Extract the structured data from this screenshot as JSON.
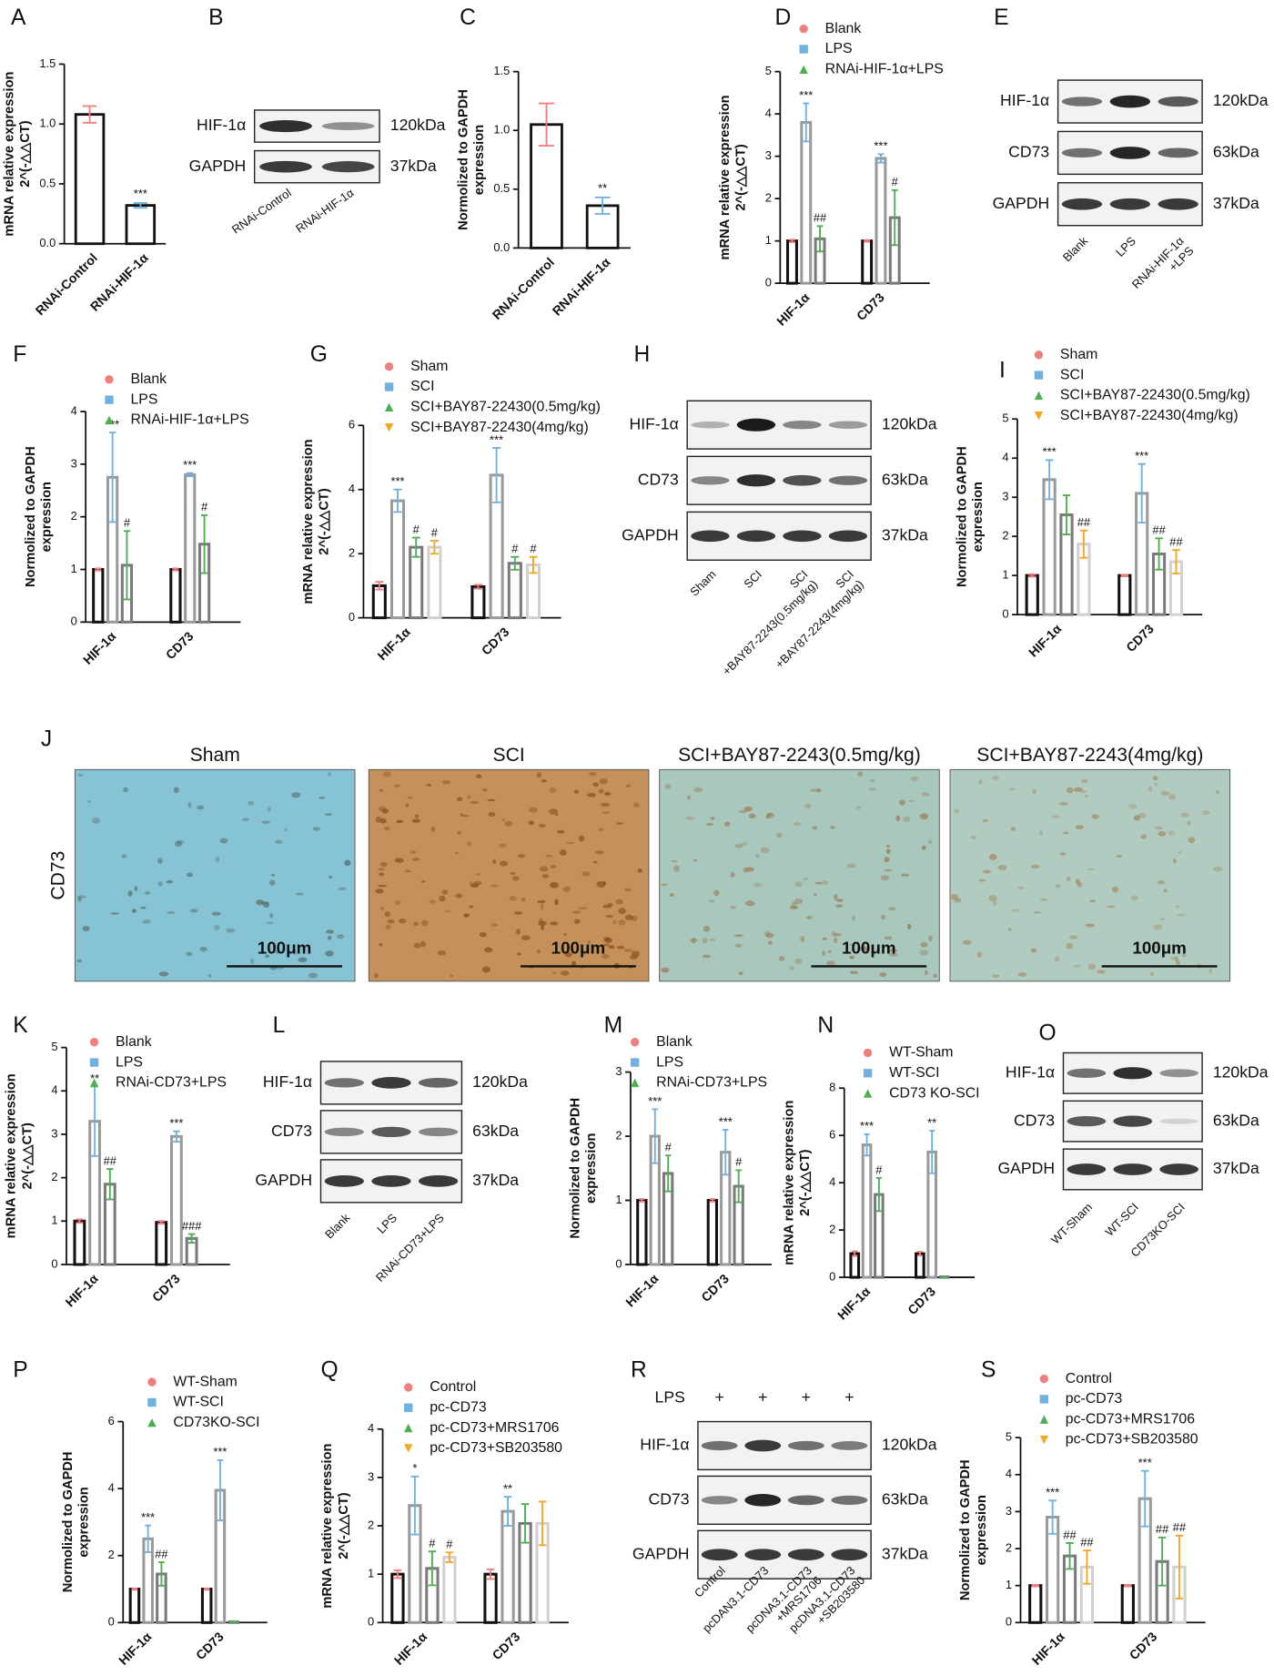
{
  "chart_data": [
    {
      "panel": "A",
      "type": "bar",
      "ylabel": [
        "mRNA relative expression",
        "2^(-△△CT)"
      ],
      "categories": [
        "RNAi-Control",
        "RNAi-HIF-1α"
      ],
      "values": [
        1.08,
        0.32
      ],
      "errors": [
        0.07,
        0.02
      ],
      "annotations": [
        null,
        "***"
      ],
      "colors": [
        "#f08080",
        "#6fb1e0"
      ],
      "edgecolor": "#111",
      "ylim": [
        0,
        1.5
      ],
      "yticks": [
        {
          "value": 0,
          "label": "0.0"
        },
        0.5,
        {
          "value": 1,
          "label": "1.0"
        },
        1.5
      ]
    },
    {
      "panel": "C",
      "type": "bar",
      "ylabel": [
        "Normolized to GAPDH",
        "expression"
      ],
      "categories": [
        "RNAi-Control",
        "RNAi-HIF-1α"
      ],
      "values": [
        1.05,
        0.36
      ],
      "errors": [
        0.18,
        0.07
      ],
      "annotations": [
        null,
        "**"
      ],
      "colors": [
        "#f08080",
        "#6fb1e0"
      ],
      "edgecolor": "#111",
      "ylim": [
        0,
        1.5
      ],
      "yticks": [
        {
          "value": 0,
          "label": "0.0"
        },
        0.5,
        {
          "value": 1,
          "label": "1.0"
        },
        1.5
      ]
    },
    {
      "panel": "D",
      "type": "bar",
      "ylabel": [
        "mRNA relative expression",
        "2^(-△△CT)"
      ],
      "categories": [
        "HIF-1α",
        "CD73"
      ],
      "ylim": [
        0,
        5
      ],
      "yticks": [
        0,
        1,
        2,
        3,
        4,
        5
      ],
      "series": [
        {
          "name": "Blank",
          "color": "#f08080",
          "edgecolor": "#111",
          "marker": "circle",
          "values": [
            1,
            1
          ],
          "errors": [
            0.03,
            0.02
          ]
        },
        {
          "name": "LPS",
          "color": "#6fb1e0",
          "edgecolor": "#9a9a9a",
          "marker": "square",
          "values": [
            3.8,
            2.95
          ],
          "errors": [
            0.45,
            0.1
          ],
          "annotations": [
            "***",
            "***"
          ]
        },
        {
          "name": "RNAi-HIF-1α+LPS",
          "color": "#4caf50",
          "edgecolor": "#7a7a7a",
          "marker": "triangle",
          "values": [
            1.05,
            1.55
          ],
          "errors": [
            0.3,
            0.65
          ],
          "annotations": [
            "##",
            "#"
          ]
        }
      ]
    },
    {
      "panel": "F",
      "type": "bar",
      "ylabel": [
        "Normolized to GAPDH",
        "expression"
      ],
      "categories": [
        "HIF-1α",
        "CD73"
      ],
      "ylim": [
        0,
        4
      ],
      "yticks": [
        0,
        1,
        2,
        3,
        4
      ],
      "series": [
        {
          "name": "Blank",
          "color": "#f08080",
          "edgecolor": "#111",
          "marker": "circle",
          "values": [
            1,
            1
          ],
          "errors": [
            0.02,
            0.02
          ]
        },
        {
          "name": "LPS",
          "color": "#6fb1e0",
          "edgecolor": "#9a9a9a",
          "marker": "square",
          "values": [
            2.75,
            2.8
          ],
          "errors": [
            0.85,
            0.03
          ],
          "annotations": [
            "***",
            "***"
          ]
        },
        {
          "name": "RNAi-HIF-1α+LPS",
          "color": "#4caf50",
          "edgecolor": "#7a7a7a",
          "marker": "triangle",
          "values": [
            1.08,
            1.48
          ],
          "errors": [
            0.65,
            0.55
          ],
          "annotations": [
            "#",
            "#"
          ]
        }
      ]
    },
    {
      "panel": "G",
      "type": "bar",
      "ylabel": [
        "mRNA relative expression",
        "2^(-△△CT)"
      ],
      "categories": [
        "HIF-1α",
        "CD73"
      ],
      "ylim": [
        0,
        6
      ],
      "yticks": [
        0,
        2,
        4,
        6
      ],
      "series": [
        {
          "name": "Sham",
          "color": "#f08080",
          "edgecolor": "#111",
          "marker": "circle",
          "values": [
            1,
            0.97
          ],
          "errors": [
            0.12,
            0.06
          ]
        },
        {
          "name": "SCI",
          "color": "#6fb1e0",
          "edgecolor": "#9a9a9a",
          "marker": "square",
          "values": [
            3.65,
            4.45
          ],
          "errors": [
            0.35,
            0.85
          ],
          "annotations": [
            "***",
            "***"
          ]
        },
        {
          "name": "SCI+BAY87-22430(0.5mg/kg)",
          "color": "#4caf50",
          "edgecolor": "#7a7a7a",
          "marker": "triangle",
          "values": [
            2.2,
            1.7
          ],
          "errors": [
            0.3,
            0.2
          ],
          "annotations": [
            "#",
            "#"
          ]
        },
        {
          "name": "SCI+BAY87-22430(4mg/kg)",
          "color": "#f5a623",
          "edgecolor": "#d0d0d0",
          "marker": "triangle-down",
          "values": [
            2.2,
            1.65
          ],
          "errors": [
            0.2,
            0.25
          ],
          "annotations": [
            "#",
            "#"
          ]
        }
      ]
    },
    {
      "panel": "I",
      "type": "bar",
      "ylabel": [
        "Normolized to GAPDH",
        "expression"
      ],
      "categories": [
        "HIF-1α",
        "CD73"
      ],
      "ylim": [
        0,
        5
      ],
      "yticks": [
        0,
        1,
        2,
        3,
        4,
        5
      ],
      "series": [
        {
          "name": "Sham",
          "color": "#f08080",
          "edgecolor": "#111",
          "marker": "circle",
          "values": [
            1,
            1
          ],
          "errors": [
            0.03,
            0.02
          ]
        },
        {
          "name": "SCI",
          "color": "#6fb1e0",
          "edgecolor": "#9a9a9a",
          "marker": "square",
          "values": [
            3.45,
            3.1
          ],
          "errors": [
            0.5,
            0.75
          ],
          "annotations": [
            "***",
            "***"
          ]
        },
        {
          "name": "SCI+BAY87-22430(0.5mg/kg)",
          "color": "#4caf50",
          "edgecolor": "#7a7a7a",
          "marker": "triangle",
          "values": [
            2.55,
            1.55
          ],
          "errors": [
            0.5,
            0.4
          ],
          "annotations": [
            null,
            "##"
          ]
        },
        {
          "name": "SCI+BAY87-22430(4mg/kg)",
          "color": "#f5a623",
          "edgecolor": "#d0d0d0",
          "marker": "triangle-down",
          "values": [
            1.8,
            1.35
          ],
          "errors": [
            0.35,
            0.3
          ],
          "annotations": [
            "##",
            "##"
          ]
        }
      ]
    },
    {
      "panel": "K",
      "type": "bar",
      "ylabel": [
        "mRNA relative expression",
        "2^(-△△CT)"
      ],
      "categories": [
        "HIF-1α",
        "CD73"
      ],
      "ylim": [
        0,
        5
      ],
      "yticks": [
        0,
        1,
        2,
        3,
        4,
        5
      ],
      "series": [
        {
          "name": "Blank",
          "color": "#f08080",
          "edgecolor": "#111",
          "marker": "circle",
          "values": [
            1,
            0.97
          ],
          "errors": [
            0.04,
            0.03
          ]
        },
        {
          "name": "LPS",
          "color": "#6fb1e0",
          "edgecolor": "#9a9a9a",
          "marker": "square",
          "values": [
            3.3,
            2.95
          ],
          "errors": [
            0.8,
            0.12
          ],
          "annotations": [
            "**",
            "***"
          ]
        },
        {
          "name": "RNAi-CD73+LPS",
          "color": "#4caf50",
          "edgecolor": "#7a7a7a",
          "marker": "triangle",
          "values": [
            1.85,
            0.6
          ],
          "errors": [
            0.35,
            0.1
          ],
          "annotations": [
            "##",
            "###"
          ]
        }
      ]
    },
    {
      "panel": "M",
      "type": "bar",
      "ylabel": [
        "Normolized to GAPDH",
        "expression"
      ],
      "categories": [
        "HIF-1α",
        "CD73"
      ],
      "ylim": [
        0,
        3
      ],
      "yticks": [
        0,
        1,
        2,
        3
      ],
      "series": [
        {
          "name": "Blank",
          "color": "#f08080",
          "edgecolor": "#111",
          "marker": "circle",
          "values": [
            1,
            1
          ],
          "errors": [
            0.02,
            0.02
          ]
        },
        {
          "name": "LPS",
          "color": "#6fb1e0",
          "edgecolor": "#9a9a9a",
          "marker": "square",
          "values": [
            2.0,
            1.75
          ],
          "errors": [
            0.42,
            0.35
          ],
          "annotations": [
            "***",
            "***"
          ]
        },
        {
          "name": "RNAi-CD73+LPS",
          "color": "#4caf50",
          "edgecolor": "#7a7a7a",
          "marker": "triangle",
          "values": [
            1.42,
            1.22
          ],
          "errors": [
            0.28,
            0.25
          ],
          "annotations": [
            "#",
            "#"
          ]
        }
      ]
    },
    {
      "panel": "N",
      "type": "bar",
      "ylabel": [
        "mRNA relative expression",
        "2^(-△△CT)"
      ],
      "categories": [
        "HIF-1α",
        "CD73"
      ],
      "ylim": [
        0,
        8
      ],
      "yticks": [
        0,
        2,
        4,
        6,
        8
      ],
      "series": [
        {
          "name": "WT-Sham",
          "color": "#f08080",
          "edgecolor": "#111",
          "marker": "circle",
          "values": [
            1,
            1
          ],
          "errors": [
            0.1,
            0.08
          ]
        },
        {
          "name": "WT-SCI",
          "color": "#6fb1e0",
          "edgecolor": "#9a9a9a",
          "marker": "square",
          "values": [
            5.6,
            5.3
          ],
          "errors": [
            0.45,
            0.9
          ],
          "annotations": [
            "***",
            "**"
          ]
        },
        {
          "name": "CD73 KO-SCI",
          "color": "#4caf50",
          "edgecolor": "#7a7a7a",
          "marker": "triangle",
          "values": [
            3.5,
            0.02
          ],
          "errors": [
            0.7,
            0.02
          ],
          "annotations": [
            "#",
            null
          ]
        }
      ]
    },
    {
      "panel": "P",
      "type": "bar",
      "ylabel": [
        "Normolized to GAPDH",
        "expression"
      ],
      "categories": [
        "HIF-1α",
        "CD73"
      ],
      "ylim": [
        0,
        6
      ],
      "yticks": [
        0,
        2,
        4,
        6
      ],
      "series": [
        {
          "name": "WT-Sham",
          "color": "#f08080",
          "edgecolor": "#111",
          "marker": "circle",
          "values": [
            1,
            1
          ],
          "errors": [
            0.02,
            0.02
          ]
        },
        {
          "name": "WT-SCI",
          "color": "#6fb1e0",
          "edgecolor": "#9a9a9a",
          "marker": "square",
          "values": [
            2.5,
            3.95
          ],
          "errors": [
            0.4,
            0.9
          ],
          "annotations": [
            "***",
            "***"
          ]
        },
        {
          "name": "CD73KO-SCI",
          "color": "#4caf50",
          "edgecolor": "#7a7a7a",
          "marker": "triangle",
          "values": [
            1.45,
            0.02
          ],
          "errors": [
            0.35,
            0.02
          ],
          "annotations": [
            "##",
            null
          ]
        }
      ]
    },
    {
      "panel": "Q",
      "type": "bar",
      "ylabel": [
        "mRNA relative expression",
        "2^(-△△CT)"
      ],
      "categories": [
        "HIF-1α",
        "CD73"
      ],
      "ylim": [
        0,
        4
      ],
      "yticks": [
        0,
        1,
        2,
        3,
        4
      ],
      "series": [
        {
          "name": "Control",
          "color": "#f08080",
          "edgecolor": "#111",
          "marker": "circle",
          "values": [
            1,
            1
          ],
          "errors": [
            0.08,
            0.1
          ]
        },
        {
          "name": "pc-CD73",
          "color": "#6fb1e0",
          "edgecolor": "#9a9a9a",
          "marker": "square",
          "values": [
            2.42,
            2.3
          ],
          "errors": [
            0.6,
            0.3
          ],
          "annotations": [
            "*",
            "**"
          ]
        },
        {
          "name": "pc-CD73+MRS1706",
          "color": "#4caf50",
          "edgecolor": "#7a7a7a",
          "marker": "triangle",
          "values": [
            1.12,
            2.05
          ],
          "errors": [
            0.35,
            0.4
          ],
          "annotations": [
            "#",
            null
          ]
        },
        {
          "name": "pc-CD73+SB203580",
          "color": "#f5a623",
          "edgecolor": "#d0d0d0",
          "marker": "triangle-down",
          "values": [
            1.35,
            2.05
          ],
          "errors": [
            0.1,
            0.45
          ],
          "annotations": [
            "#",
            null
          ]
        }
      ]
    },
    {
      "panel": "S",
      "type": "bar",
      "ylabel": [
        "Normolized to GAPDH",
        "expression"
      ],
      "categories": [
        "HIF-1α",
        "CD73"
      ],
      "ylim": [
        0,
        5
      ],
      "yticks": [
        0,
        1,
        2,
        3,
        4,
        5
      ],
      "series": [
        {
          "name": "Control",
          "color": "#f08080",
          "edgecolor": "#111",
          "marker": "circle",
          "values": [
            1,
            1
          ],
          "errors": [
            0.02,
            0.02
          ]
        },
        {
          "name": "pc-CD73",
          "color": "#6fb1e0",
          "edgecolor": "#9a9a9a",
          "marker": "square",
          "values": [
            2.85,
            3.35
          ],
          "errors": [
            0.45,
            0.75
          ],
          "annotations": [
            "***",
            "***"
          ]
        },
        {
          "name": "pc-CD73+MRS1706",
          "color": "#4caf50",
          "edgecolor": "#7a7a7a",
          "marker": "triangle",
          "values": [
            1.8,
            1.65
          ],
          "errors": [
            0.35,
            0.65
          ],
          "annotations": [
            "##",
            "##"
          ]
        },
        {
          "name": "pc-CD73+SB203580",
          "color": "#f5a623",
          "edgecolor": "#d0d0d0",
          "marker": "triangle-down",
          "values": [
            1.5,
            1.5
          ],
          "errors": [
            0.45,
            0.85
          ],
          "annotations": [
            "##",
            "##"
          ]
        }
      ]
    }
  ],
  "blots": [
    {
      "panel": "B",
      "rows": [
        {
          "label": "HIF-1α",
          "size": "120kDa"
        },
        {
          "label": "GAPDH",
          "size": "37kDa"
        }
      ],
      "lanes": [
        [
          "RNAi-Control"
        ],
        [
          "RNAi-HIF-1α"
        ]
      ]
    },
    {
      "panel": "E",
      "rows": [
        {
          "label": "HIF-1α",
          "size": "120kDa"
        },
        {
          "label": "CD73",
          "size": "63kDa"
        },
        {
          "label": "GAPDH",
          "size": "37kDa"
        }
      ],
      "lanes": [
        [
          "Blank"
        ],
        [
          "LPS"
        ],
        [
          "RNAi-HIF-1α",
          "+LPS"
        ]
      ]
    },
    {
      "panel": "H",
      "rows": [
        {
          "label": "HIF-1α",
          "size": "120kDa"
        },
        {
          "label": "CD73",
          "size": "63kDa"
        },
        {
          "label": "GAPDH",
          "size": "37kDa"
        }
      ],
      "lanes": [
        [
          "Sham"
        ],
        [
          "SCI"
        ],
        [
          "SCI",
          "+BAY87-2243(0.5mg/kg)"
        ],
        [
          "SCI",
          "+BAY87-2243(4mg/kg)"
        ]
      ]
    },
    {
      "panel": "L",
      "rows": [
        {
          "label": "HIF-1α",
          "size": "120kDa"
        },
        {
          "label": "CD73",
          "size": "63kDa"
        },
        {
          "label": "GAPDH",
          "size": "37kDa"
        }
      ],
      "lanes": [
        [
          "Blank"
        ],
        [
          "LPS"
        ],
        [
          "RNAi-CD73+LPS"
        ]
      ]
    },
    {
      "panel": "O",
      "rows": [
        {
          "label": "HIF-1α",
          "size": "120kDa"
        },
        {
          "label": "CD73",
          "size": "63kDa"
        },
        {
          "label": "GAPDH",
          "size": "37kDa"
        }
      ],
      "lanes": [
        [
          "WT-Sham"
        ],
        [
          "WT-SCI"
        ],
        [
          "CD73KO-SCI"
        ]
      ]
    },
    {
      "panel": "R",
      "header": {
        "label": "LPS",
        "marks": [
          "+",
          "+",
          "+",
          "+"
        ]
      },
      "rows": [
        {
          "label": "HIF-1α",
          "size": "120kDa"
        },
        {
          "label": "CD73",
          "size": "63kDa"
        },
        {
          "label": "GAPDH",
          "size": "37kDa"
        }
      ],
      "lanes": [
        [
          "Control"
        ],
        [
          "pcDAN3.1-CD73"
        ],
        [
          "pcDNA3.1-CD73",
          "+MRS1706"
        ],
        [
          "pcDNA3.1-CD73",
          "+SB203580"
        ]
      ]
    }
  ],
  "ihc": {
    "panel": "J",
    "row_label": "CD73",
    "columns": [
      "Sham",
      "SCI",
      "SCI+BAY87-2243(0.5mg/kg)",
      "SCI+BAY87-2243(4mg/kg)"
    ],
    "scale_bar": "100μm"
  }
}
